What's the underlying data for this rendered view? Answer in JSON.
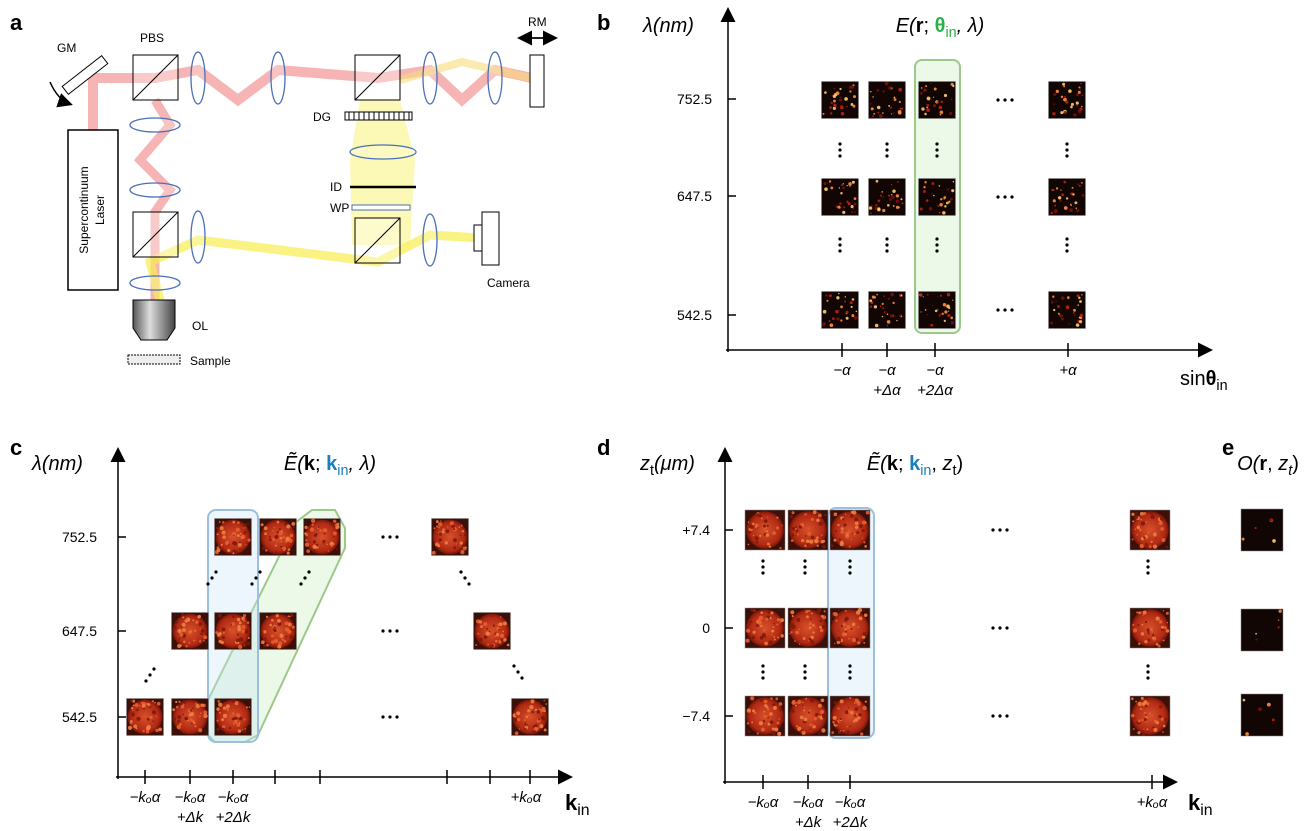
{
  "panel_a": {
    "letter": "a",
    "gm": "GM",
    "pbs": "PBS",
    "rm": "RM",
    "dg": "DG",
    "id": "ID",
    "wp": "WP",
    "camera": "Camera",
    "ol": "OL",
    "sample": "Sample",
    "laser": [
      "Supercontinuum",
      "Laser"
    ]
  },
  "panel_b": {
    "letter": "b",
    "y_label": "λ(nm)",
    "title": [
      "E(",
      "r",
      "; ",
      "θ",
      "in",
      ", λ)"
    ],
    "y_ticks": [
      "752.5",
      "647.5",
      "542.5"
    ],
    "x_ticks": [
      [
        "−α"
      ],
      [
        "−α",
        "+Δα"
      ],
      [
        "−α",
        "+2Δα"
      ],
      [
        "+α"
      ]
    ],
    "x_label": [
      "sin",
      "θ",
      "in"
    ]
  },
  "panel_c": {
    "letter": "c",
    "y_label": "λ(nm)",
    "title": [
      "Ẽ(",
      "k",
      "; ",
      "k",
      "in",
      ", λ)"
    ],
    "y_ticks": [
      "752.5",
      "647.5",
      "542.5"
    ],
    "x_ticks": [
      [
        "−kₒα"
      ],
      [
        "−kₒα",
        "+Δk"
      ],
      [
        "−kₒα",
        "+2Δk"
      ],
      [
        "+kₒα"
      ]
    ],
    "x_label": [
      "k",
      "in"
    ]
  },
  "panel_d": {
    "letter": "d",
    "y_label": [
      "z",
      "t",
      "(μm)"
    ],
    "title": [
      "Ẽ(",
      "k",
      "; ",
      "k",
      "in",
      ", ",
      "z",
      "t",
      ")"
    ],
    "y_ticks": [
      "+7.4",
      "0",
      "−7.4"
    ],
    "x_ticks": [
      [
        "−kₒα"
      ],
      [
        "−kₒα",
        "+Δk"
      ],
      [
        "−kₒα",
        "+2Δk"
      ],
      [
        "+kₒα"
      ]
    ],
    "x_label": [
      "k",
      "in"
    ]
  },
  "panel_e": {
    "letter": "e",
    "title": [
      "O(",
      "r",
      ", ",
      "z",
      "t",
      ")"
    ]
  }
}
